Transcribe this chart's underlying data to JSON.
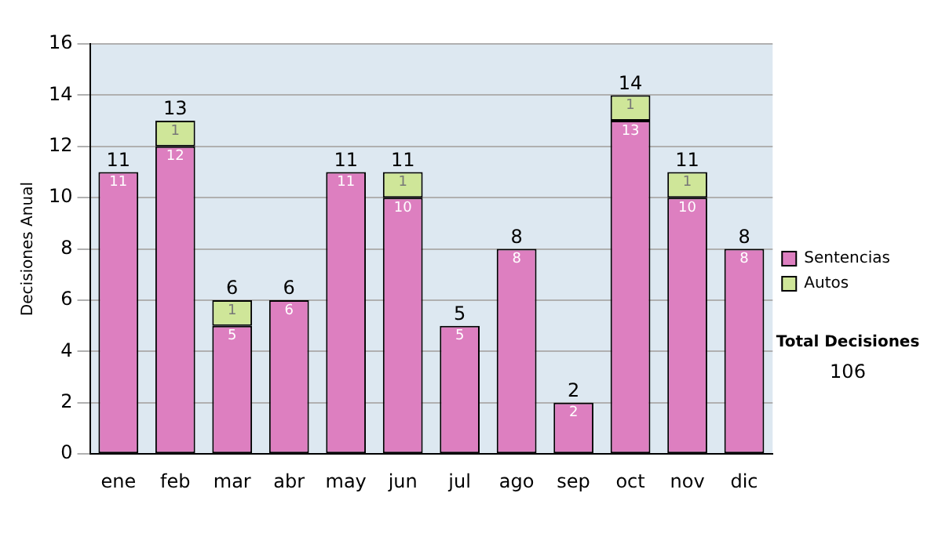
{
  "chart_data": {
    "type": "bar",
    "ylabel": "Decisiones Anual",
    "categories": [
      "ene",
      "feb",
      "mar",
      "abr",
      "may",
      "jun",
      "jul",
      "ago",
      "sep",
      "oct",
      "nov",
      "dic"
    ],
    "series": [
      {
        "name": "Sentencias",
        "color": "#dd7fc0",
        "values": [
          11,
          12,
          5,
          6,
          11,
          10,
          5,
          8,
          2,
          13,
          10,
          8
        ],
        "value_labels": [
          "11",
          "12",
          "5",
          "6",
          "11",
          "10",
          "5",
          "8",
          "2",
          "13",
          "10",
          "8"
        ]
      },
      {
        "name": "Autos",
        "color": "#cfe699",
        "values": [
          0,
          1,
          1,
          0,
          0,
          1,
          0,
          0,
          0,
          1,
          1,
          0
        ],
        "value_labels": [
          null,
          "1",
          "1",
          null,
          null,
          "1",
          null,
          null,
          null,
          "1",
          "1",
          null
        ]
      }
    ],
    "stacked": true,
    "ylim": [
      0,
      16
    ],
    "yticks": [
      0,
      2,
      4,
      6,
      8,
      10,
      12,
      14,
      16
    ],
    "grid": "y",
    "legend": "right",
    "totals": [
      "11",
      "13",
      "6",
      "6",
      "11",
      "11",
      "5",
      "8",
      "2",
      "14",
      "11",
      "8"
    ],
    "annotations": [
      "Total Decisiones",
      "106"
    ]
  }
}
